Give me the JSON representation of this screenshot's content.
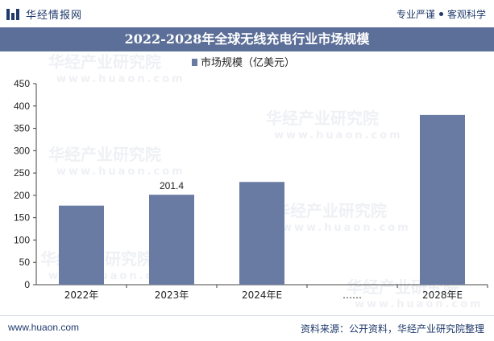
{
  "header": {
    "brand": "华经情报网",
    "tagline_left": "专业严谨",
    "tagline_right": "客观科学"
  },
  "title": "2022-2028年全球无线充电行业市场规模",
  "watermark": {
    "cn": "华经产业研究院",
    "en": "www.huaon.com"
  },
  "chart_data": {
    "type": "bar",
    "title": "2022-2028年全球无线充电行业市场规模",
    "legend": "市场规模（亿美元）",
    "legend_position": "top-center",
    "categories": [
      "2022年",
      "2023年",
      "2024年E",
      "……",
      "2028年E"
    ],
    "series": [
      {
        "name": "市场规模（亿美元）",
        "values": [
          177,
          201.4,
          230,
          null,
          380
        ],
        "data_labels": [
          "",
          "201.4",
          "",
          "",
          ""
        ]
      }
    ],
    "ylim": [
      0,
      450
    ],
    "yticks": [
      0,
      50,
      100,
      150,
      200,
      250,
      300,
      350,
      400,
      450
    ],
    "grid": false,
    "bar_color": "#6a7ba3"
  },
  "footer": {
    "url": "www.huaon.com",
    "source": "资料来源：公开资料，华经产业研究院整理"
  }
}
